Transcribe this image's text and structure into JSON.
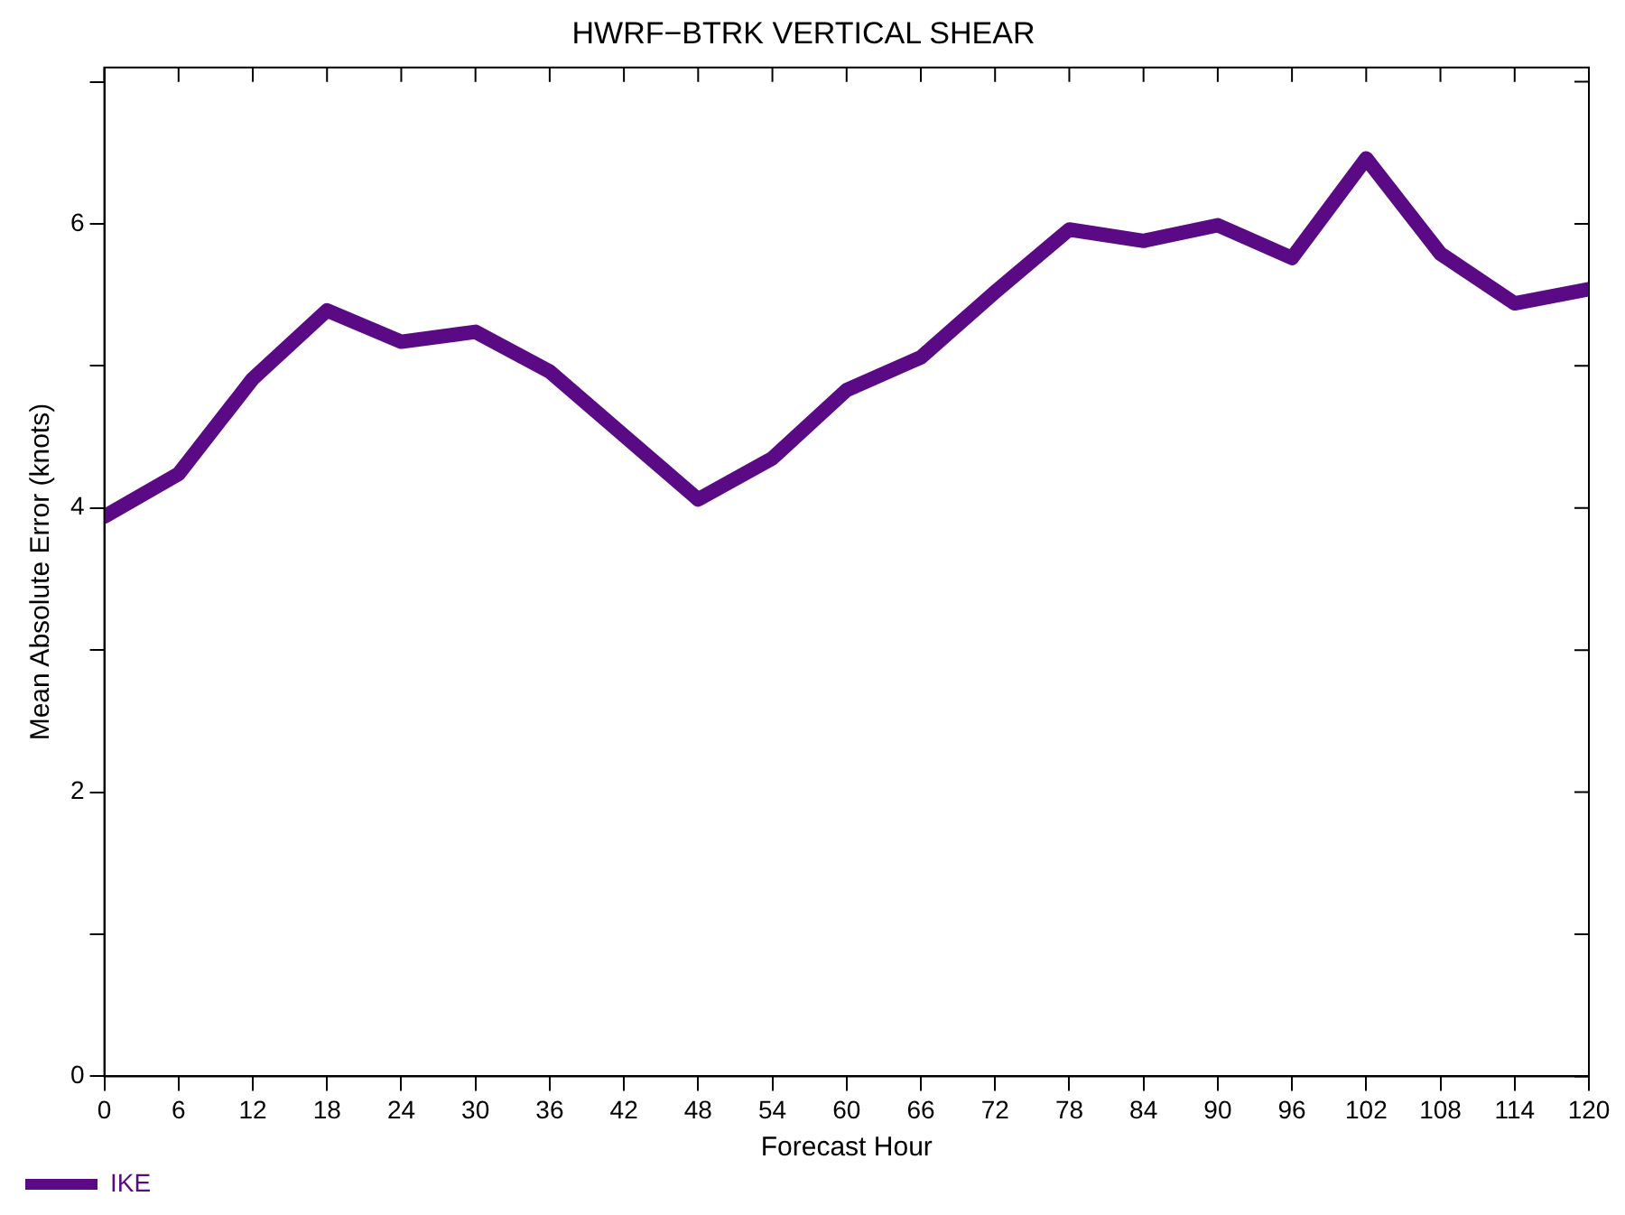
{
  "chart_data": {
    "type": "line",
    "title": "HWRF−BTRK VERTICAL SHEAR",
    "xlabel": "Forecast Hour",
    "ylabel": "Mean Absolute Error (knots)",
    "x": [
      0,
      6,
      12,
      18,
      24,
      30,
      36,
      42,
      48,
      54,
      60,
      66,
      72,
      78,
      84,
      90,
      96,
      102,
      108,
      114,
      120
    ],
    "series": [
      {
        "name": "IKE",
        "color": "#5a0a84",
        "values": [
          3.94,
          4.24,
          4.91,
          5.39,
          5.17,
          5.24,
          4.96,
          4.51,
          4.06,
          4.35,
          4.83,
          5.06,
          5.52,
          5.96,
          5.88,
          5.99,
          5.76,
          6.46,
          5.79,
          5.44,
          5.54
        ]
      }
    ],
    "xlim": [
      0,
      120
    ],
    "xticks": [
      0,
      6,
      12,
      18,
      24,
      30,
      36,
      42,
      48,
      54,
      60,
      66,
      72,
      78,
      84,
      90,
      96,
      102,
      108,
      114,
      120
    ],
    "ylim": [
      0,
      7.1
    ],
    "yticks": [
      0,
      {
        "value": 1,
        "label": null
      },
      2,
      {
        "value": 3,
        "label": null
      },
      4,
      {
        "value": 5,
        "label": null
      },
      6,
      {
        "value": 7,
        "label": null
      }
    ],
    "grid": false,
    "legend": "bottom left",
    "marker": "none",
    "line_style": "solid"
  }
}
